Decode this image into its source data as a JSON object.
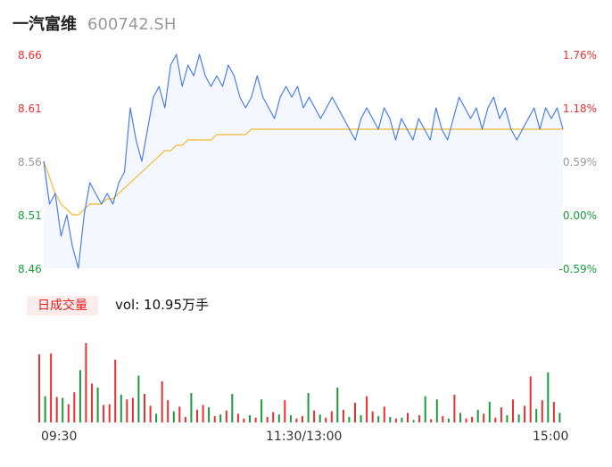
{
  "header": {
    "name": "一汽富维",
    "code": "600742.SH"
  },
  "colors": {
    "up": "#e83030",
    "down": "#1a9b3c",
    "neutral": "#999999",
    "price_line": "#4a7fe6",
    "avg_line": "#f2c24f",
    "price_fill": "#f4f7fd"
  },
  "volume": {
    "tab_label": "日成交量",
    "text": "vol: 10.95万手"
  },
  "time_labels": [
    "09:30",
    "11:30/13:00",
    "15:00"
  ],
  "chart_data": [
    {
      "type": "line",
      "title": "",
      "prev_close": 8.51,
      "ylim": [
        8.46,
        8.66
      ],
      "y_ticks": [
        "8.66",
        "8.61",
        "8.56",
        "8.51",
        "8.46"
      ],
      "y2_ticks": [
        "1.76%",
        "1.18%",
        "0.59%",
        "0.00%",
        "-0.59%"
      ],
      "x_ticks": [
        "09:30",
        "11:30/13:00",
        "15:00"
      ],
      "series": [
        {
          "key": "price",
          "values": [
            8.56,
            8.52,
            8.53,
            8.49,
            8.51,
            8.48,
            8.46,
            8.51,
            8.54,
            8.53,
            8.52,
            8.53,
            8.52,
            8.54,
            8.55,
            8.61,
            8.58,
            8.56,
            8.59,
            8.62,
            8.63,
            8.61,
            8.65,
            8.66,
            8.63,
            8.65,
            8.64,
            8.66,
            8.64,
            8.63,
            8.64,
            8.63,
            8.65,
            8.64,
            8.62,
            8.61,
            8.62,
            8.64,
            8.62,
            8.61,
            8.6,
            8.62,
            8.63,
            8.62,
            8.63,
            8.61,
            8.62,
            8.61,
            8.6,
            8.61,
            8.62,
            8.61,
            8.6,
            8.59,
            8.58,
            8.6,
            8.61,
            8.6,
            8.59,
            8.61,
            8.6,
            8.58,
            8.6,
            8.59,
            8.58,
            8.6,
            8.59,
            8.58,
            8.61,
            8.59,
            8.58,
            8.6,
            8.62,
            8.61,
            8.6,
            8.61,
            8.59,
            8.61,
            8.62,
            8.6,
            8.61,
            8.59,
            8.58,
            8.59,
            8.6,
            8.61,
            8.59,
            8.61,
            8.6,
            8.61,
            8.59
          ]
        },
        {
          "key": "avg",
          "values": [
            8.56,
            8.545,
            8.53,
            8.52,
            8.515,
            8.51,
            8.51,
            8.515,
            8.52,
            8.52,
            8.52,
            8.525,
            8.525,
            8.53,
            8.535,
            8.54,
            8.545,
            8.55,
            8.555,
            8.56,
            8.565,
            8.57,
            8.57,
            8.575,
            8.575,
            8.58,
            8.58,
            8.58,
            8.58,
            8.58,
            8.585,
            8.585,
            8.585,
            8.585,
            8.585,
            8.585,
            8.59,
            8.59,
            8.59,
            8.59,
            8.59,
            8.59,
            8.59,
            8.59,
            8.59,
            8.59,
            8.59,
            8.59,
            8.59,
            8.59,
            8.59,
            8.59,
            8.59,
            8.59,
            8.59,
            8.59,
            8.59,
            8.59,
            8.59,
            8.59,
            8.59,
            8.59,
            8.59,
            8.59,
            8.59,
            8.59,
            8.59,
            8.59,
            8.59,
            8.59,
            8.59,
            8.59,
            8.59,
            8.59,
            8.59,
            8.59,
            8.59,
            8.59,
            8.59,
            8.59,
            8.59,
            8.59,
            8.59,
            8.59,
            8.59,
            8.59,
            8.59,
            8.59,
            8.59,
            8.59,
            8.59
          ]
        }
      ]
    },
    {
      "type": "bar",
      "title": "",
      "x_ticks": [
        "09:30",
        "11:30/13:00",
        "15:00"
      ],
      "series": [
        {
          "key": "volume",
          "values": [
            0.86,
            0.33,
            0.87,
            0.32,
            0.31,
            0.23,
            0.38,
            0.66,
            1.0,
            0.49,
            0.44,
            0.22,
            0.23,
            0.79,
            0.35,
            0.29,
            0.31,
            0.59,
            0.36,
            0.21,
            0.11,
            0.52,
            0.28,
            0.14,
            0.2,
            0.07,
            0.37,
            0.16,
            0.22,
            0.19,
            0.08,
            0.1,
            0.15,
            0.36,
            0.11,
            0.05,
            0.09,
            0.06,
            0.29,
            0.07,
            0.13,
            0.1,
            0.28,
            0.09,
            0.05,
            0.08,
            0.37,
            0.15,
            0.1,
            0.06,
            0.14,
            0.44,
            0.16,
            0.07,
            0.25,
            0.09,
            0.33,
            0.14,
            0.08,
            0.2,
            0.07,
            0.05,
            0.06,
            0.12,
            0.03,
            0.09,
            0.33,
            0.04,
            0.29,
            0.08,
            0.05,
            0.35,
            0.12,
            0.05,
            0.07,
            0.16,
            0.11,
            0.26,
            0.06,
            0.19,
            0.09,
            0.29,
            0.1,
            0.21,
            0.58,
            0.17,
            0.28,
            0.63,
            0.26,
            0.12
          ]
        },
        {
          "key": "direction",
          "values": [
            1,
            -1,
            1,
            1,
            -1,
            1,
            1,
            -1,
            1,
            1,
            -1,
            1,
            1,
            1,
            -1,
            1,
            1,
            -1,
            1,
            1,
            -1,
            1,
            1,
            -1,
            1,
            1,
            -1,
            1,
            1,
            -1,
            1,
            -1,
            1,
            -1,
            1,
            1,
            -1,
            1,
            -1,
            1,
            1,
            -1,
            1,
            -1,
            1,
            1,
            -1,
            1,
            -1,
            1,
            1,
            -1,
            1,
            -1,
            1,
            -1,
            1,
            1,
            -1,
            1,
            -1,
            1,
            -1,
            1,
            -1,
            1,
            -1,
            1,
            -1,
            1,
            -1,
            1,
            -1,
            1,
            1,
            -1,
            1,
            -1,
            1,
            1,
            -1,
            1,
            -1,
            1,
            1,
            -1,
            1,
            -1,
            1,
            -1
          ]
        }
      ]
    }
  ]
}
